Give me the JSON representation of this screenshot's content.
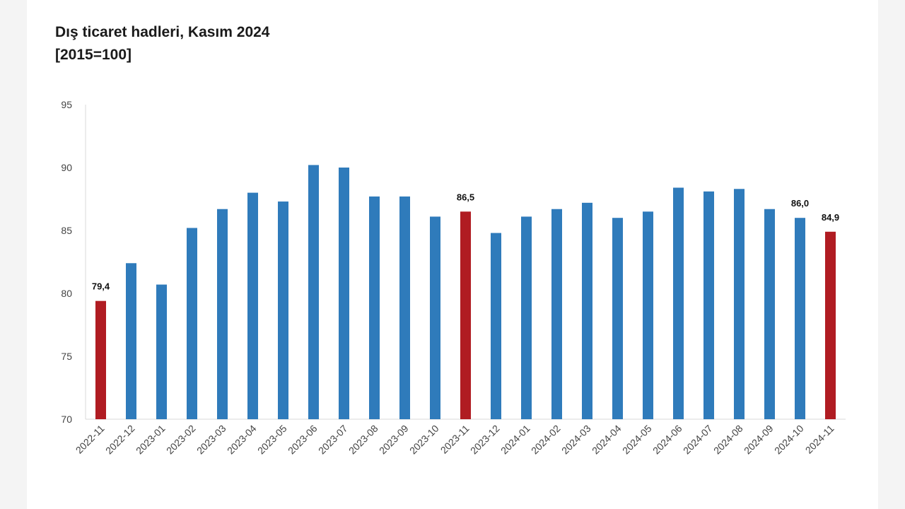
{
  "colors": {
    "bar": "#2f7bbb",
    "highlight": "#b01c22",
    "axis": "#d9d9d9"
  },
  "chart_data": {
    "type": "bar",
    "title": "Dış ticaret hadleri, Kasım 2024",
    "subtitle": "[2015=100]",
    "xlabel": "",
    "ylabel": "",
    "ylim": [
      70,
      95
    ],
    "yticks": [
      70,
      75,
      80,
      85,
      90,
      95
    ],
    "grid": false,
    "legend": "none",
    "categories": [
      "2022-11",
      "2022-12",
      "2023-01",
      "2023-02",
      "2023-03",
      "2023-04",
      "2023-05",
      "2023-06",
      "2023-07",
      "2023-08",
      "2023-09",
      "2023-10",
      "2023-11",
      "2023-12",
      "2024-01",
      "2024-02",
      "2024-03",
      "2024-04",
      "2024-05",
      "2024-06",
      "2024-07",
      "2024-08",
      "2024-09",
      "2024-10",
      "2024-11"
    ],
    "values": [
      79.4,
      82.4,
      80.7,
      85.2,
      86.7,
      88.0,
      87.3,
      90.2,
      90.0,
      87.7,
      87.7,
      86.1,
      86.5,
      84.8,
      86.1,
      86.7,
      87.2,
      86.0,
      86.5,
      88.4,
      88.1,
      88.3,
      86.7,
      86.0,
      84.9
    ],
    "highlighted": [
      "2022-11",
      "2023-11",
      "2024-11"
    ],
    "data_labels": [
      {
        "category": "2022-11",
        "text": "79,4"
      },
      {
        "category": "2023-11",
        "text": "86,5"
      },
      {
        "category": "2024-10",
        "text": "86,0"
      },
      {
        "category": "2024-11",
        "text": "84,9"
      }
    ]
  }
}
